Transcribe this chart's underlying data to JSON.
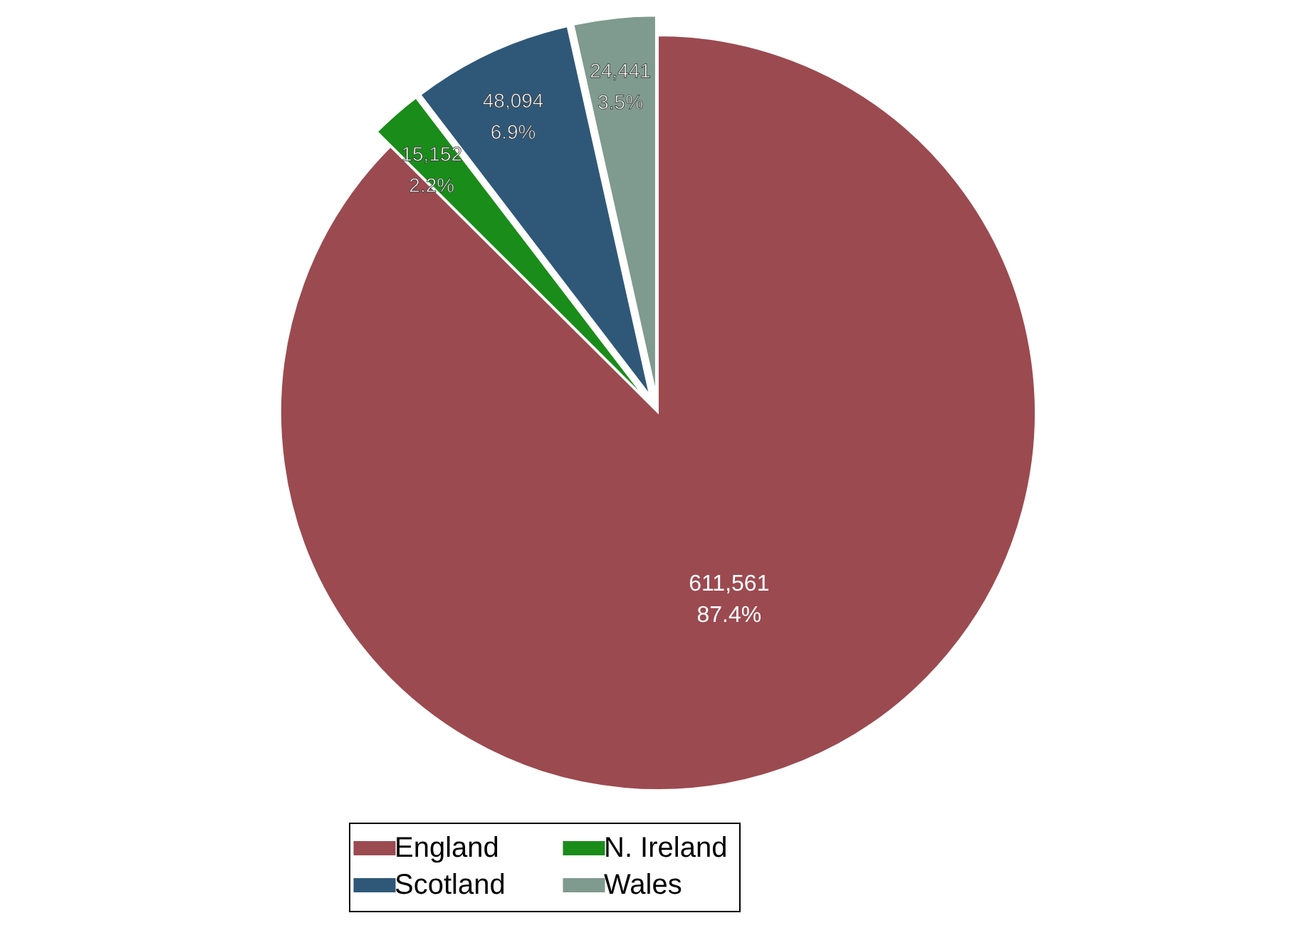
{
  "chart_data": {
    "type": "pie",
    "categories": [
      "England",
      "N. Ireland",
      "Scotland",
      "Wales"
    ],
    "values": [
      611561,
      15152,
      48094,
      24441
    ],
    "colors": [
      "#9b4a50",
      "#1a8c1a",
      "#2f5878",
      "#7f9a8e"
    ],
    "value_labels": [
      "611,561\n87.4%",
      "15,152\n2.2%",
      "48,094\n6.9%",
      "24,441\n3.5%"
    ],
    "legend": "bottom"
  }
}
